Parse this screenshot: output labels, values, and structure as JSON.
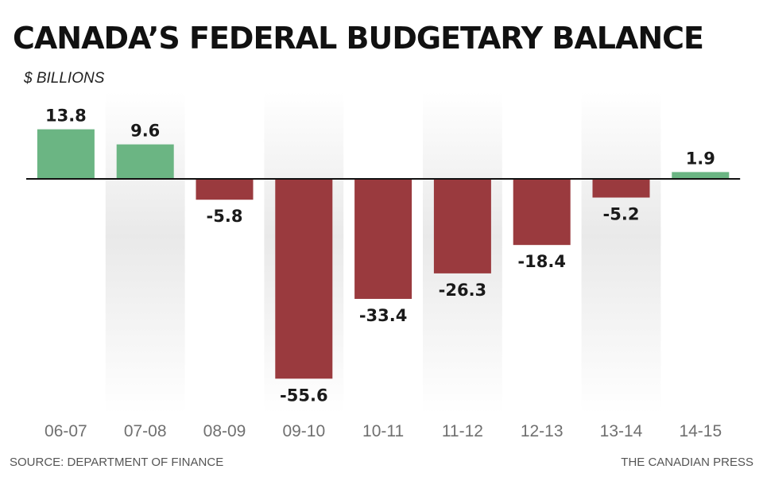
{
  "header": {
    "title": "CANADA’S FEDERAL BUDGETARY BALANCE",
    "subtitle": "$ BILLIONS"
  },
  "footer": {
    "source": "SOURCE: DEPARTMENT OF FINANCE",
    "credit": "THE CANADIAN PRESS"
  },
  "chart_data": {
    "type": "bar",
    "title": "CANADA’S FEDERAL BUDGETARY BALANCE",
    "subtitle": "$ BILLIONS",
    "categories": [
      "06-07",
      "07-08",
      "08-09",
      "09-10",
      "10-11",
      "11-12",
      "12-13",
      "13-14",
      "14-15"
    ],
    "values": [
      13.8,
      9.6,
      -5.8,
      -55.6,
      -33.4,
      -26.3,
      -18.4,
      -5.2,
      1.9
    ],
    "value_labels": [
      "13.8",
      "9.6",
      "-5.8",
      "-55.6",
      "-33.4",
      "-26.3",
      "-18.4",
      "-5.2",
      "1.9"
    ],
    "xlabel": "",
    "ylabel": "",
    "ylim": [
      -55.6,
      13.8
    ],
    "grid": false,
    "legend": "none",
    "colors": {
      "positive": "#6bb583",
      "negative": "#9a3a3e",
      "zero_line": "#111111",
      "band": "#ececec"
    }
  }
}
